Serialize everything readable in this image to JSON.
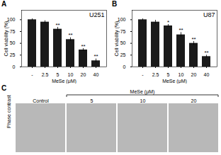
{
  "chart_data": [
    {
      "type": "bar",
      "panel_label": "A",
      "title": "U251",
      "categories": [
        "-",
        "2.5",
        "5",
        "10",
        "20",
        "40"
      ],
      "values": [
        100,
        95,
        80,
        58,
        36,
        13
      ],
      "errors": [
        2,
        3,
        4,
        4,
        3,
        4
      ],
      "color": "#1a1a1a",
      "xlabel": "MeSe (μM)",
      "ylabel": "Cell viability (%)",
      "ylim": [
        0,
        120
      ],
      "yticks": [
        0,
        25,
        50,
        75,
        100
      ],
      "grid": false,
      "annotations": [
        {
          "x": "5",
          "text": "**"
        },
        {
          "x": "10",
          "text": "**"
        },
        {
          "x": "20",
          "text": "**"
        },
        {
          "x": "40",
          "text": "**"
        }
      ]
    },
    {
      "type": "bar",
      "panel_label": "B",
      "title": "U87",
      "categories": [
        "-",
        "2.5",
        "5",
        "10",
        "20",
        "40"
      ],
      "values": [
        100,
        95,
        87,
        68,
        50,
        22
      ],
      "errors": [
        2,
        4,
        3,
        5,
        4,
        3
      ],
      "color": "#1a1a1a",
      "xlabel": "MeSe (μM)",
      "ylabel": "Cell viability (%)",
      "ylim": [
        0,
        120
      ],
      "yticks": [
        0,
        25,
        50,
        75,
        100
      ],
      "grid": false,
      "annotations": [
        {
          "x": "5",
          "text": "*"
        },
        {
          "x": "10",
          "text": "**"
        },
        {
          "x": "20",
          "text": "**"
        },
        {
          "x": "40",
          "text": "**"
        }
      ]
    },
    {
      "type": "image",
      "panel_label": "C",
      "categories": [
        "Control",
        "5",
        "10",
        "20"
      ],
      "xlabel": "MeSe (μM)",
      "ylabel": "Phase contrast",
      "color": "#b8b8b8"
    }
  ]
}
